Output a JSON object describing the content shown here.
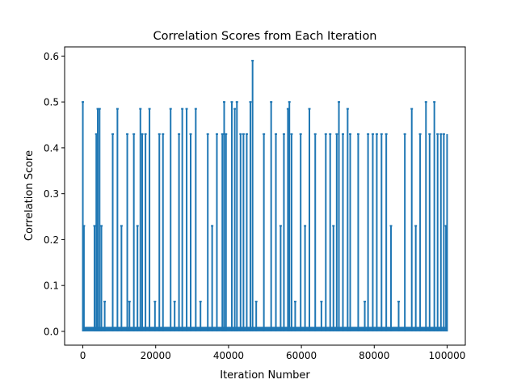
{
  "chart_data": {
    "type": "line",
    "title": "Correlation Scores from Each Iteration",
    "xlabel": "Iteration Number",
    "ylabel": "Correlation Score",
    "xlim": [
      -5000,
      105000
    ],
    "ylim": [
      -0.03,
      0.62
    ],
    "x_ticks": [
      0,
      20000,
      40000,
      60000,
      80000,
      100000
    ],
    "y_ticks": [
      0.0,
      0.1,
      0.2,
      0.3,
      0.4,
      0.5,
      0.6
    ],
    "x_tick_labels": [
      "0",
      "20000",
      "40000",
      "60000",
      "80000",
      "100000"
    ],
    "y_tick_labels": [
      "0.0",
      "0.1",
      "0.2",
      "0.3",
      "0.4",
      "0.5",
      "0.6"
    ],
    "grid": false,
    "series": [
      {
        "color": "#1f77b4",
        "spikes": [
          [
            0,
            0.5
          ],
          [
            300,
            0.23
          ],
          [
            500,
            0.005
          ],
          [
            3200,
            0.23
          ],
          [
            3700,
            0.43
          ],
          [
            4100,
            0.485
          ],
          [
            4600,
            0.485
          ],
          [
            5100,
            0.23
          ],
          [
            6000,
            0.065
          ],
          [
            8200,
            0.43
          ],
          [
            9500,
            0.485
          ],
          [
            10600,
            0.23
          ],
          [
            12200,
            0.43
          ],
          [
            12800,
            0.065
          ],
          [
            14000,
            0.43
          ],
          [
            15000,
            0.23
          ],
          [
            15800,
            0.485
          ],
          [
            16300,
            0.43
          ],
          [
            17200,
            0.43
          ],
          [
            18300,
            0.485
          ],
          [
            19800,
            0.065
          ],
          [
            21000,
            0.43
          ],
          [
            22000,
            0.43
          ],
          [
            24100,
            0.485
          ],
          [
            25200,
            0.065
          ],
          [
            26400,
            0.43
          ],
          [
            27300,
            0.485
          ],
          [
            28500,
            0.485
          ],
          [
            29600,
            0.43
          ],
          [
            31000,
            0.485
          ],
          [
            32300,
            0.065
          ],
          [
            34300,
            0.43
          ],
          [
            35500,
            0.23
          ],
          [
            36800,
            0.43
          ],
          [
            38300,
            0.43
          ],
          [
            38800,
            0.5
          ],
          [
            39300,
            0.43
          ],
          [
            40900,
            0.5
          ],
          [
            41700,
            0.485
          ],
          [
            42300,
            0.5
          ],
          [
            43300,
            0.43
          ],
          [
            44100,
            0.43
          ],
          [
            45000,
            0.43
          ],
          [
            46000,
            0.5
          ],
          [
            46600,
            0.59
          ],
          [
            47600,
            0.065
          ],
          [
            49700,
            0.43
          ],
          [
            51700,
            0.5
          ],
          [
            53000,
            0.43
          ],
          [
            54300,
            0.23
          ],
          [
            55200,
            0.43
          ],
          [
            56300,
            0.485
          ],
          [
            56700,
            0.5
          ],
          [
            57300,
            0.43
          ],
          [
            58300,
            0.065
          ],
          [
            59800,
            0.43
          ],
          [
            61000,
            0.23
          ],
          [
            62200,
            0.485
          ],
          [
            63800,
            0.43
          ],
          [
            65500,
            0.065
          ],
          [
            66700,
            0.43
          ],
          [
            67900,
            0.43
          ],
          [
            68800,
            0.23
          ],
          [
            69700,
            0.43
          ],
          [
            70300,
            0.5
          ],
          [
            71400,
            0.43
          ],
          [
            72700,
            0.485
          ],
          [
            73400,
            0.43
          ],
          [
            75600,
            0.43
          ],
          [
            77400,
            0.065
          ],
          [
            78300,
            0.43
          ],
          [
            79600,
            0.43
          ],
          [
            80700,
            0.43
          ],
          [
            82000,
            0.43
          ],
          [
            83300,
            0.43
          ],
          [
            84600,
            0.23
          ],
          [
            86700,
            0.065
          ],
          [
            88400,
            0.43
          ],
          [
            90300,
            0.485
          ],
          [
            91400,
            0.23
          ],
          [
            92600,
            0.43
          ],
          [
            94200,
            0.5
          ],
          [
            95200,
            0.43
          ],
          [
            96500,
            0.5
          ],
          [
            97400,
            0.43
          ],
          [
            98300,
            0.43
          ],
          [
            99100,
            0.43
          ],
          [
            99700,
            0.23
          ]
        ]
      }
    ]
  }
}
